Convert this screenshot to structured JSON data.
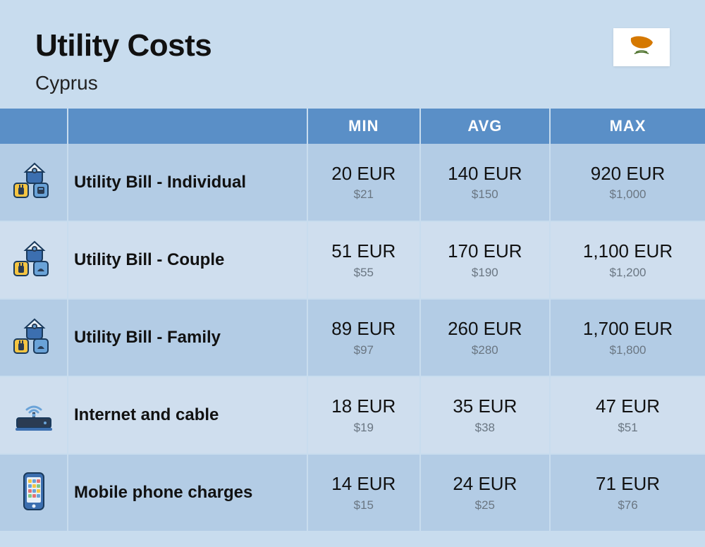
{
  "title": "Utility Costs",
  "subtitle": "Cyprus",
  "colors": {
    "page_bg": "#c8dcee",
    "header_bg": "#5a8fc7",
    "header_text": "#ffffff",
    "row_dark": "#b3cce5",
    "row_light": "#cfdeee",
    "primary_text": "#111111",
    "secondary_text": "#6a7682",
    "icon_blue": "#3c6fb0",
    "icon_yellow": "#f5c542",
    "icon_dark": "#2a3b52",
    "icon_light": "#6aa3d8",
    "flag_orange": "#d57800",
    "flag_green": "#4a6f28"
  },
  "typography": {
    "title_fontsize": 44,
    "title_weight": 800,
    "subtitle_fontsize": 28,
    "header_fontsize": 22,
    "label_fontsize": 24,
    "eur_fontsize": 26,
    "usd_fontsize": 17
  },
  "columns": {
    "min": "MIN",
    "avg": "AVG",
    "max": "MAX"
  },
  "rows": [
    {
      "icon": "utility-individual",
      "label": "Utility Bill - Individual",
      "shade": "darker",
      "min_eur": "20 EUR",
      "min_usd": "$21",
      "avg_eur": "140 EUR",
      "avg_usd": "$150",
      "max_eur": "920 EUR",
      "max_usd": "$1,000"
    },
    {
      "icon": "utility-couple",
      "label": "Utility Bill - Couple",
      "shade": "lighter",
      "min_eur": "51 EUR",
      "min_usd": "$55",
      "avg_eur": "170 EUR",
      "avg_usd": "$190",
      "max_eur": "1,100 EUR",
      "max_usd": "$1,200"
    },
    {
      "icon": "utility-family",
      "label": "Utility Bill - Family",
      "shade": "darker",
      "min_eur": "89 EUR",
      "min_usd": "$97",
      "avg_eur": "260 EUR",
      "avg_usd": "$280",
      "max_eur": "1,700 EUR",
      "max_usd": "$1,800"
    },
    {
      "icon": "internet",
      "label": "Internet and cable",
      "shade": "lighter",
      "min_eur": "18 EUR",
      "min_usd": "$19",
      "avg_eur": "35 EUR",
      "avg_usd": "$38",
      "max_eur": "47 EUR",
      "max_usd": "$51"
    },
    {
      "icon": "mobile",
      "label": "Mobile phone charges",
      "shade": "darker",
      "min_eur": "14 EUR",
      "min_usd": "$15",
      "avg_eur": "24 EUR",
      "avg_usd": "$25",
      "max_eur": "71 EUR",
      "max_usd": "$76"
    }
  ]
}
